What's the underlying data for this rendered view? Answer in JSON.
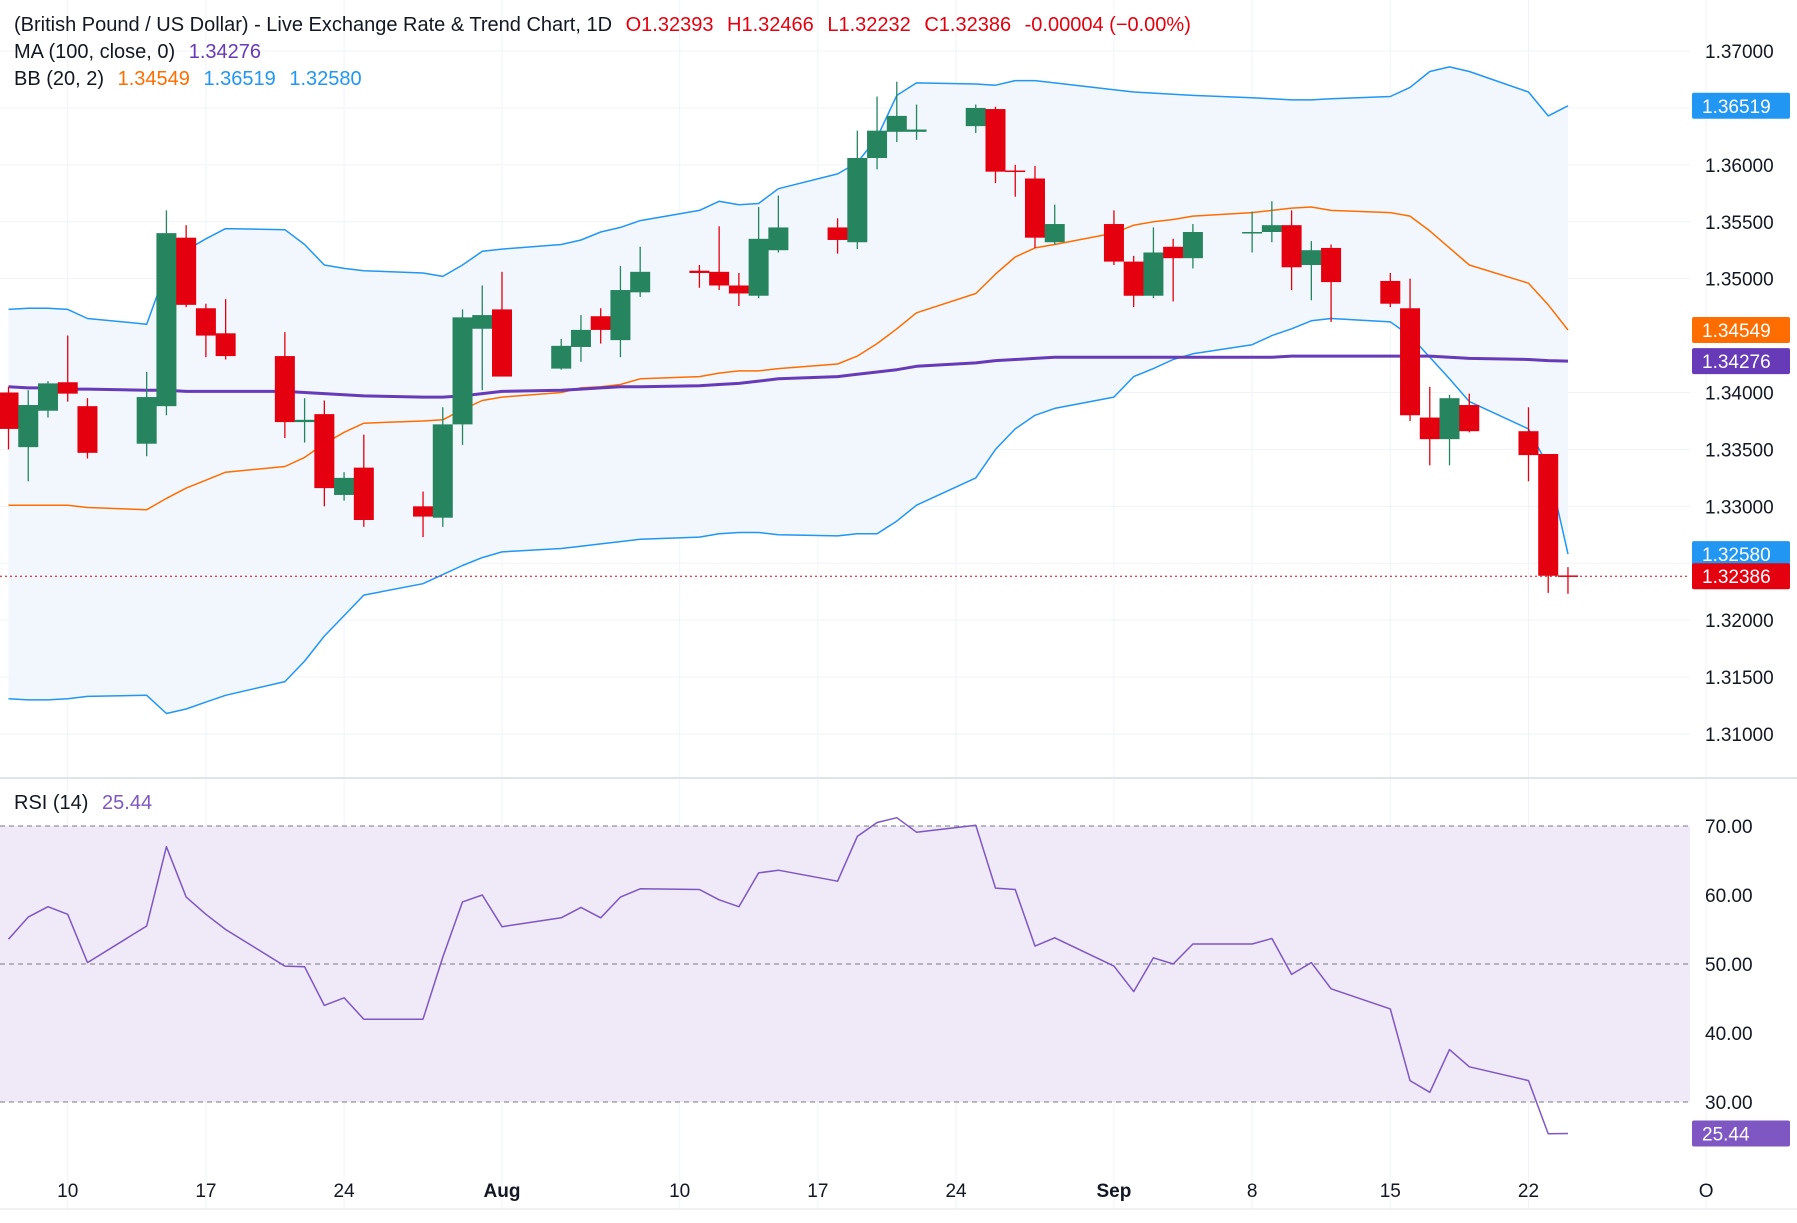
{
  "legend": {
    "title": "(British Pound / US Dollar) - Live Exchange Rate & Trend Chart, 1D",
    "open": "O1.32393",
    "high": "H1.32466",
    "low": "L1.32232",
    "close": "C1.32386",
    "change": "-0.00004 (−0.00%)",
    "ma_label": "MA (100, close, 0)",
    "ma_value": "1.34276",
    "bb_label": "BB (20, 2)",
    "bb_mid": "1.34549",
    "bb_upper": "1.36519",
    "bb_lower": "1.32580",
    "rsi_label": "RSI (14)",
    "rsi_value": "25.44"
  },
  "colors": {
    "up": "#26845f",
    "down": "#e4000f",
    "ma": "#673ab7",
    "bb_mid": "#ff6d00",
    "bb_band": "#2196f3",
    "rsi": "#7e57c2",
    "rsi_fill": "#efe9f8",
    "bb_fill": "#f1f7fd"
  },
  "chart_data": [
    {
      "type": "candlestick",
      "title": "(British Pound / US Dollar) - Live Exchange Rate & Trend Chart, 1D",
      "ylim": [
        1.3065,
        1.3738
      ],
      "y_ticks": [
        "1.37000",
        "1.36000",
        "1.35500",
        "1.35000",
        "1.34000",
        "1.33500",
        "1.33000",
        "1.32000",
        "1.31500",
        "1.31000"
      ],
      "x_ticks": [
        {
          "label": "10",
          "date": "2025-07-10"
        },
        {
          "label": "17",
          "date": "2025-07-17"
        },
        {
          "label": "24",
          "date": "2025-07-24"
        },
        {
          "label": "Aug",
          "date": "2025-08-01"
        },
        {
          "label": "10",
          "date": "2025-08-10"
        },
        {
          "label": "17",
          "date": "2025-08-17"
        },
        {
          "label": "24",
          "date": "2025-08-24"
        },
        {
          "label": "Sep",
          "date": "2025-09-01"
        },
        {
          "label": "8",
          "date": "2025-09-08"
        },
        {
          "label": "15",
          "date": "2025-09-15"
        },
        {
          "label": "22",
          "date": "2025-09-22"
        },
        {
          "label": "O",
          "date": "2025-10-01"
        }
      ],
      "grid": true,
      "candles": [
        {
          "date": "2025-07-07",
          "o": 1.34,
          "h": 1.3405,
          "l": 1.335,
          "c": 1.3368
        },
        {
          "date": "2025-07-08",
          "o": 1.3352,
          "h": 1.3402,
          "l": 1.3322,
          "c": 1.3389
        },
        {
          "date": "2025-07-09",
          "o": 1.3384,
          "h": 1.341,
          "l": 1.3378,
          "c": 1.3408
        },
        {
          "date": "2025-07-10",
          "o": 1.3409,
          "h": 1.345,
          "l": 1.3392,
          "c": 1.3399
        },
        {
          "date": "2025-07-11",
          "o": 1.3388,
          "h": 1.3395,
          "l": 1.3342,
          "c": 1.3347
        },
        {
          "date": "2025-07-14",
          "o": 1.3355,
          "h": 1.3418,
          "l": 1.3344,
          "c": 1.3396
        },
        {
          "date": "2025-07-15",
          "o": 1.3388,
          "h": 1.356,
          "l": 1.338,
          "c": 1.354
        },
        {
          "date": "2025-07-16",
          "o": 1.3536,
          "h": 1.3547,
          "l": 1.3475,
          "c": 1.3477
        },
        {
          "date": "2025-07-17",
          "o": 1.3474,
          "h": 1.3478,
          "l": 1.3431,
          "c": 1.345
        },
        {
          "date": "2025-07-18",
          "o": 1.3452,
          "h": 1.3482,
          "l": 1.3429,
          "c": 1.3432
        },
        {
          "date": "2025-07-21",
          "o": 1.3432,
          "h": 1.3453,
          "l": 1.336,
          "c": 1.3374
        },
        {
          "date": "2025-07-22",
          "o": 1.3374,
          "h": 1.3395,
          "l": 1.3356,
          "c": 1.3376
        },
        {
          "date": "2025-07-23",
          "o": 1.3381,
          "h": 1.3393,
          "l": 1.33,
          "c": 1.3316
        },
        {
          "date": "2025-07-24",
          "o": 1.331,
          "h": 1.333,
          "l": 1.3305,
          "c": 1.3325
        },
        {
          "date": "2025-07-25",
          "o": 1.3334,
          "h": 1.3363,
          "l": 1.3282,
          "c": 1.3288
        },
        {
          "date": "2025-07-28",
          "o": 1.33,
          "h": 1.3313,
          "l": 1.3273,
          "c": 1.3291
        },
        {
          "date": "2025-07-29",
          "o": 1.329,
          "h": 1.3387,
          "l": 1.3282,
          "c": 1.3372
        },
        {
          "date": "2025-07-30",
          "o": 1.3372,
          "h": 1.3473,
          "l": 1.3354,
          "c": 1.3466
        },
        {
          "date": "2025-07-31",
          "o": 1.3456,
          "h": 1.3494,
          "l": 1.3402,
          "c": 1.3468
        },
        {
          "date": "2025-08-01",
          "o": 1.3473,
          "h": 1.3506,
          "l": 1.3416,
          "c": 1.3414
        },
        {
          "date": "2025-08-04",
          "o": 1.3421,
          "h": 1.3447,
          "l": 1.342,
          "c": 1.3441
        },
        {
          "date": "2025-08-05",
          "o": 1.344,
          "h": 1.3468,
          "l": 1.3427,
          "c": 1.3455
        },
        {
          "date": "2025-08-06",
          "o": 1.3467,
          "h": 1.3474,
          "l": 1.3443,
          "c": 1.3455
        },
        {
          "date": "2025-08-07",
          "o": 1.3446,
          "h": 1.3511,
          "l": 1.3431,
          "c": 1.349
        },
        {
          "date": "2025-08-08",
          "o": 1.3488,
          "h": 1.3528,
          "l": 1.3484,
          "c": 1.3506
        },
        {
          "date": "2025-08-11",
          "o": 1.3507,
          "h": 1.3512,
          "l": 1.3492,
          "c": 1.3505
        },
        {
          "date": "2025-08-12",
          "o": 1.3506,
          "h": 1.3546,
          "l": 1.349,
          "c": 1.3494
        },
        {
          "date": "2025-08-13",
          "o": 1.3494,
          "h": 1.3505,
          "l": 1.3476,
          "c": 1.3487
        },
        {
          "date": "2025-08-14",
          "o": 1.3485,
          "h": 1.3563,
          "l": 1.3483,
          "c": 1.3535
        },
        {
          "date": "2025-08-15",
          "o": 1.3525,
          "h": 1.3573,
          "l": 1.3523,
          "c": 1.3545
        },
        {
          "date": "2025-08-18",
          "o": 1.3545,
          "h": 1.3553,
          "l": 1.3522,
          "c": 1.3534
        },
        {
          "date": "2025-08-19",
          "o": 1.3532,
          "h": 1.363,
          "l": 1.3526,
          "c": 1.3606
        },
        {
          "date": "2025-08-20",
          "o": 1.3606,
          "h": 1.366,
          "l": 1.3596,
          "c": 1.363
        },
        {
          "date": "2025-08-21",
          "o": 1.3629,
          "h": 1.3673,
          "l": 1.362,
          "c": 1.3643
        },
        {
          "date": "2025-08-22",
          "o": 1.3629,
          "h": 1.3653,
          "l": 1.3622,
          "c": 1.3631
        },
        {
          "date": "2025-08-25",
          "o": 1.3634,
          "h": 1.3653,
          "l": 1.3628,
          "c": 1.365
        },
        {
          "date": "2025-08-26",
          "o": 1.3649,
          "h": 1.3651,
          "l": 1.3584,
          "c": 1.3594
        },
        {
          "date": "2025-08-27",
          "o": 1.3595,
          "h": 1.36,
          "l": 1.3572,
          "c": 1.3594
        },
        {
          "date": "2025-08-28",
          "o": 1.3588,
          "h": 1.3599,
          "l": 1.3527,
          "c": 1.3536
        },
        {
          "date": "2025-08-29",
          "o": 1.3532,
          "h": 1.3565,
          "l": 1.353,
          "c": 1.3548
        },
        {
          "date": "2025-09-01",
          "o": 1.3548,
          "h": 1.356,
          "l": 1.3512,
          "c": 1.3515
        },
        {
          "date": "2025-09-02",
          "o": 1.3515,
          "h": 1.352,
          "l": 1.3475,
          "c": 1.3485
        },
        {
          "date": "2025-09-03",
          "o": 1.3485,
          "h": 1.3545,
          "l": 1.3483,
          "c": 1.3523
        },
        {
          "date": "2025-09-04",
          "o": 1.3528,
          "h": 1.3535,
          "l": 1.348,
          "c": 1.3518
        },
        {
          "date": "2025-09-05",
          "o": 1.3518,
          "h": 1.3548,
          "l": 1.3509,
          "c": 1.3541
        },
        {
          "date": "2025-09-08",
          "o": 1.354,
          "h": 1.3559,
          "l": 1.3523,
          "c": 1.3541
        },
        {
          "date": "2025-09-09",
          "o": 1.3541,
          "h": 1.3568,
          "l": 1.3532,
          "c": 1.3547
        },
        {
          "date": "2025-09-10",
          "o": 1.3547,
          "h": 1.356,
          "l": 1.349,
          "c": 1.351
        },
        {
          "date": "2025-09-11",
          "o": 1.3512,
          "h": 1.3533,
          "l": 1.3481,
          "c": 1.3525
        },
        {
          "date": "2025-09-12",
          "o": 1.3527,
          "h": 1.353,
          "l": 1.3462,
          "c": 1.3497
        },
        {
          "date": "2025-09-15",
          "o": 1.3498,
          "h": 1.3505,
          "l": 1.3475,
          "c": 1.3478
        },
        {
          "date": "2025-09-16",
          "o": 1.3474,
          "h": 1.35,
          "l": 1.3375,
          "c": 1.338
        },
        {
          "date": "2025-09-17",
          "o": 1.3378,
          "h": 1.3405,
          "l": 1.3336,
          "c": 1.3359
        },
        {
          "date": "2025-09-18",
          "o": 1.3359,
          "h": 1.3398,
          "l": 1.3336,
          "c": 1.3395
        },
        {
          "date": "2025-09-19",
          "o": 1.3389,
          "h": 1.3399,
          "l": 1.3365,
          "c": 1.3366
        },
        {
          "date": "2025-09-22",
          "o": 1.3366,
          "h": 1.3387,
          "l": 1.3322,
          "c": 1.3345
        },
        {
          "date": "2025-09-23",
          "o": 1.3346,
          "h": 1.3346,
          "l": 1.3224,
          "c": 1.3239
        },
        {
          "date": "2025-09-24",
          "o": 1.32393,
          "h": 1.32466,
          "l": 1.32232,
          "c": 1.32386
        }
      ],
      "series": [
        {
          "name": "MA (100, close, 0)",
          "last": 1.34276,
          "values": [
            1.3405,
            1.3404,
            1.3404,
            1.3403,
            1.3403,
            1.3402,
            1.3402,
            1.3401,
            1.3401,
            1.3401,
            1.3401,
            1.34,
            1.3399,
            1.3398,
            1.3397,
            1.3396,
            1.3396,
            1.3397,
            1.3399,
            1.3401,
            1.3402,
            1.3403,
            1.3404,
            1.3405,
            1.3405,
            1.3406,
            1.3407,
            1.3408,
            1.341,
            1.3412,
            1.3414,
            1.3416,
            1.3418,
            1.342,
            1.3423,
            1.3426,
            1.3428,
            1.3429,
            1.343,
            1.3431,
            1.3431,
            1.3431,
            1.3431,
            1.3431,
            1.3431,
            1.3431,
            1.3431,
            1.3432,
            1.3432,
            1.3432,
            1.3432,
            1.3432,
            1.3432,
            1.3431,
            1.343,
            1.3429,
            1.3428,
            1.34276
          ]
        },
        {
          "name": "BB (20, 2)",
          "last": 1.34549,
          "values": [
            1.3301,
            1.3301,
            1.3301,
            1.3301,
            1.3299,
            1.3297,
            1.3307,
            1.3316,
            1.3323,
            1.333,
            1.3335,
            1.3343,
            1.3355,
            1.3365,
            1.3373,
            1.3375,
            1.3376,
            1.3385,
            1.3393,
            1.3396,
            1.34,
            1.3404,
            1.3405,
            1.3407,
            1.3412,
            1.3414,
            1.3417,
            1.3419,
            1.3419,
            1.3421,
            1.3425,
            1.3432,
            1.3443,
            1.3456,
            1.347,
            1.3487,
            1.3504,
            1.3519,
            1.3527,
            1.353,
            1.354,
            1.3547,
            1.355,
            1.3552,
            1.3555,
            1.3558,
            1.356,
            1.3562,
            1.3563,
            1.356,
            1.3558,
            1.3555,
            1.3542,
            1.3527,
            1.3512,
            1.3496,
            1.3477,
            1.34549
          ]
        },
        {
          "name": "BB upper",
          "last": 1.36519,
          "values": [
            1.3473,
            1.3474,
            1.3474,
            1.3473,
            1.3465,
            1.346,
            1.3508,
            1.3525,
            1.3535,
            1.3544,
            1.3543,
            1.353,
            1.3512,
            1.3509,
            1.3507,
            1.3505,
            1.3502,
            1.3512,
            1.3524,
            1.3526,
            1.353,
            1.3534,
            1.3541,
            1.3545,
            1.3551,
            1.356,
            1.3568,
            1.3565,
            1.3566,
            1.3579,
            1.3592,
            1.3602,
            1.3624,
            1.3661,
            1.3672,
            1.3671,
            1.367,
            1.3674,
            1.3674,
            1.3672,
            1.3666,
            1.3664,
            1.3663,
            1.3662,
            1.3661,
            1.3659,
            1.3658,
            1.3657,
            1.3657,
            1.3658,
            1.366,
            1.3668,
            1.3682,
            1.3686,
            1.3682,
            1.3664,
            1.3643,
            1.36519
          ]
        },
        {
          "name": "BB lower",
          "last": 1.3258,
          "values": [
            1.3131,
            1.313,
            1.313,
            1.3131,
            1.3133,
            1.3134,
            1.3118,
            1.3122,
            1.3128,
            1.3134,
            1.3146,
            1.3164,
            1.3186,
            1.3204,
            1.3222,
            1.3232,
            1.324,
            1.3248,
            1.3255,
            1.326,
            1.3263,
            1.3265,
            1.3267,
            1.3269,
            1.3271,
            1.3273,
            1.3276,
            1.3277,
            1.3277,
            1.3275,
            1.3274,
            1.3276,
            1.3276,
            1.3287,
            1.3301,
            1.3325,
            1.335,
            1.3368,
            1.338,
            1.3386,
            1.3396,
            1.3414,
            1.3421,
            1.3429,
            1.3434,
            1.3442,
            1.345,
            1.3456,
            1.3463,
            1.3465,
            1.3462,
            1.345,
            1.3431,
            1.3412,
            1.3392,
            1.3368,
            1.3335,
            1.3258
          ]
        }
      ]
    },
    {
      "type": "line",
      "title": "RSI (14)",
      "ylim": [
        24.5,
        73
      ],
      "y_ticks": [
        "70.00",
        "60.00",
        "50.00",
        "40.00",
        "30.00"
      ],
      "bands": [
        30,
        50,
        70
      ],
      "series": [
        {
          "name": "RSI (14)",
          "last": 25.44,
          "values": [
            53.6,
            56.8,
            58.3,
            57.2,
            50.2,
            55.5,
            67.0,
            59.7,
            57.2,
            55.0,
            49.7,
            49.6,
            44.0,
            45.1,
            42.0,
            42.0,
            51.0,
            59.0,
            60.0,
            55.4,
            56.7,
            58.2,
            56.7,
            59.7,
            60.9,
            60.8,
            59.3,
            58.3,
            63.2,
            63.6,
            62.0,
            68.5,
            70.5,
            71.2,
            69.1,
            70.1,
            61.0,
            60.8,
            52.6,
            53.8,
            49.7,
            46.0,
            50.9,
            50.0,
            52.9,
            52.9,
            53.7,
            48.5,
            50.2,
            46.4,
            43.5,
            33.1,
            31.4,
            37.6,
            35.1,
            33.1,
            25.4,
            25.44
          ]
        }
      ]
    }
  ]
}
